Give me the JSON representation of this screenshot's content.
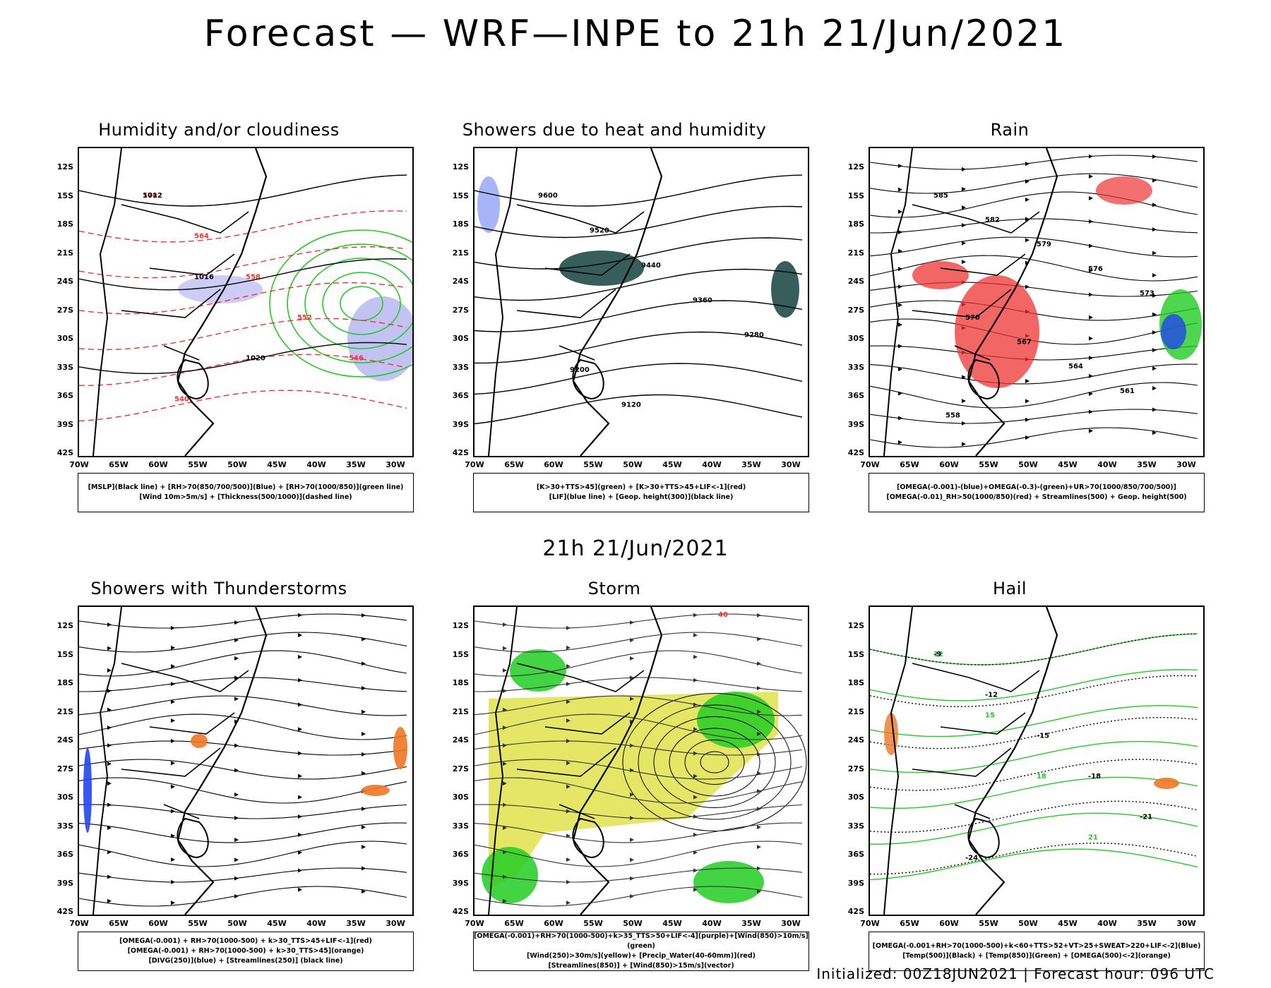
{
  "title": "Forecast — WRF—INPE to 21h 21/Jun/2021",
  "subtitle_date": "21h 21/Jun/2021",
  "footer": "Initialized: 00Z18JUN2021 | Forecast hour: 096 UTC",
  "lat_labels": [
    "12S",
    "15S",
    "18S",
    "21S",
    "24S",
    "27S",
    "30S",
    "33S",
    "36S",
    "39S",
    "42S"
  ],
  "lon_labels": [
    "70W",
    "65W",
    "60W",
    "55W",
    "50W",
    "45W",
    "40W",
    "35W",
    "30W"
  ],
  "colors": {
    "green": "#22cc22",
    "blue": "#2244ee",
    "red": "#ee3333",
    "orange": "#ee7722",
    "yellow": "#dddd33",
    "darkteal": "#224d4a",
    "purple": "#9999ee"
  },
  "panels": [
    {
      "title": "Humidity and/or cloudiness",
      "legend": [
        "[MSLP](Black line) + [RH>70(850/700/500)](Blue) + [RH>70(1000/850)](green line)",
        "[Wind 10m>5m/s] + [Thickness(500/1000)](dashed line)"
      ],
      "contour_labels": [
        "1012",
        "1016",
        "1020",
        "570",
        "564",
        "558",
        "552",
        "546",
        "540"
      ]
    },
    {
      "title": "Showers due to heat and humidity",
      "legend": [
        "[K>30+TTS>45](green) + [K>30+TTS>45+LIF<-1](red)",
        "[LIF](blue line) + [Geop. height(300)](black line)"
      ],
      "contour_labels": [
        "9600",
        "9520",
        "9440",
        "9360",
        "9280",
        "9200",
        "9120"
      ]
    },
    {
      "title": "Rain",
      "legend": [
        "[OMEGA(-0.001)-(blue)+OMEGA(-0.3)-(green)+UR>70(1000/850/700/500)]",
        "[OMEGA(-0.01)_RH>50(1000/850)(red) + Streamlines(500) + Geop. height(500)"
      ],
      "contour_labels": [
        "585",
        "582",
        "579",
        "576",
        "573",
        "570",
        "567",
        "564",
        "561",
        "558"
      ]
    },
    {
      "title": "Showers with Thunderstorms",
      "legend": [
        "[OMEGA(-0.001) + RH>70(1000-500) + k>30_TTS>45+LIF<-1](red)",
        "[OMEGA(-0.001) + RH>70(1000-500) + k>30_TTS>45](orange)",
        "[DIVG(250)](blue) + [Streamlines(250)] (black line)"
      ],
      "contour_labels": []
    },
    {
      "title": "Storm",
      "legend": [
        "[OMEGA(-0.001)+RH>70(1000-500)+k>35_TTS>50+LIF<-4](purple)+[Wind(850)>10m/s](green)",
        "[Wind(250)>30m/s](yellow)+ [Precip_Water(40-60mm)](red)",
        "[Streamlines(850)] + [Wind(850)>15m/s](vector)"
      ],
      "contour_labels": [
        "40"
      ]
    },
    {
      "title": "Hail",
      "legend": [
        "[OMEGA(-0.001+RH>70(1000-500)+k<60+TTS>52+VT>25+SWEAT>220+LIF<-2](Blue)",
        "[Temp(500)](Black) + [Temp(850)](Green) + [OMEGA(500)<-2](orange)"
      ],
      "contour_labels": [
        "-9",
        "-12",
        "-15",
        "-18",
        "-21",
        "-24",
        "12",
        "15",
        "18",
        "21"
      ]
    }
  ]
}
